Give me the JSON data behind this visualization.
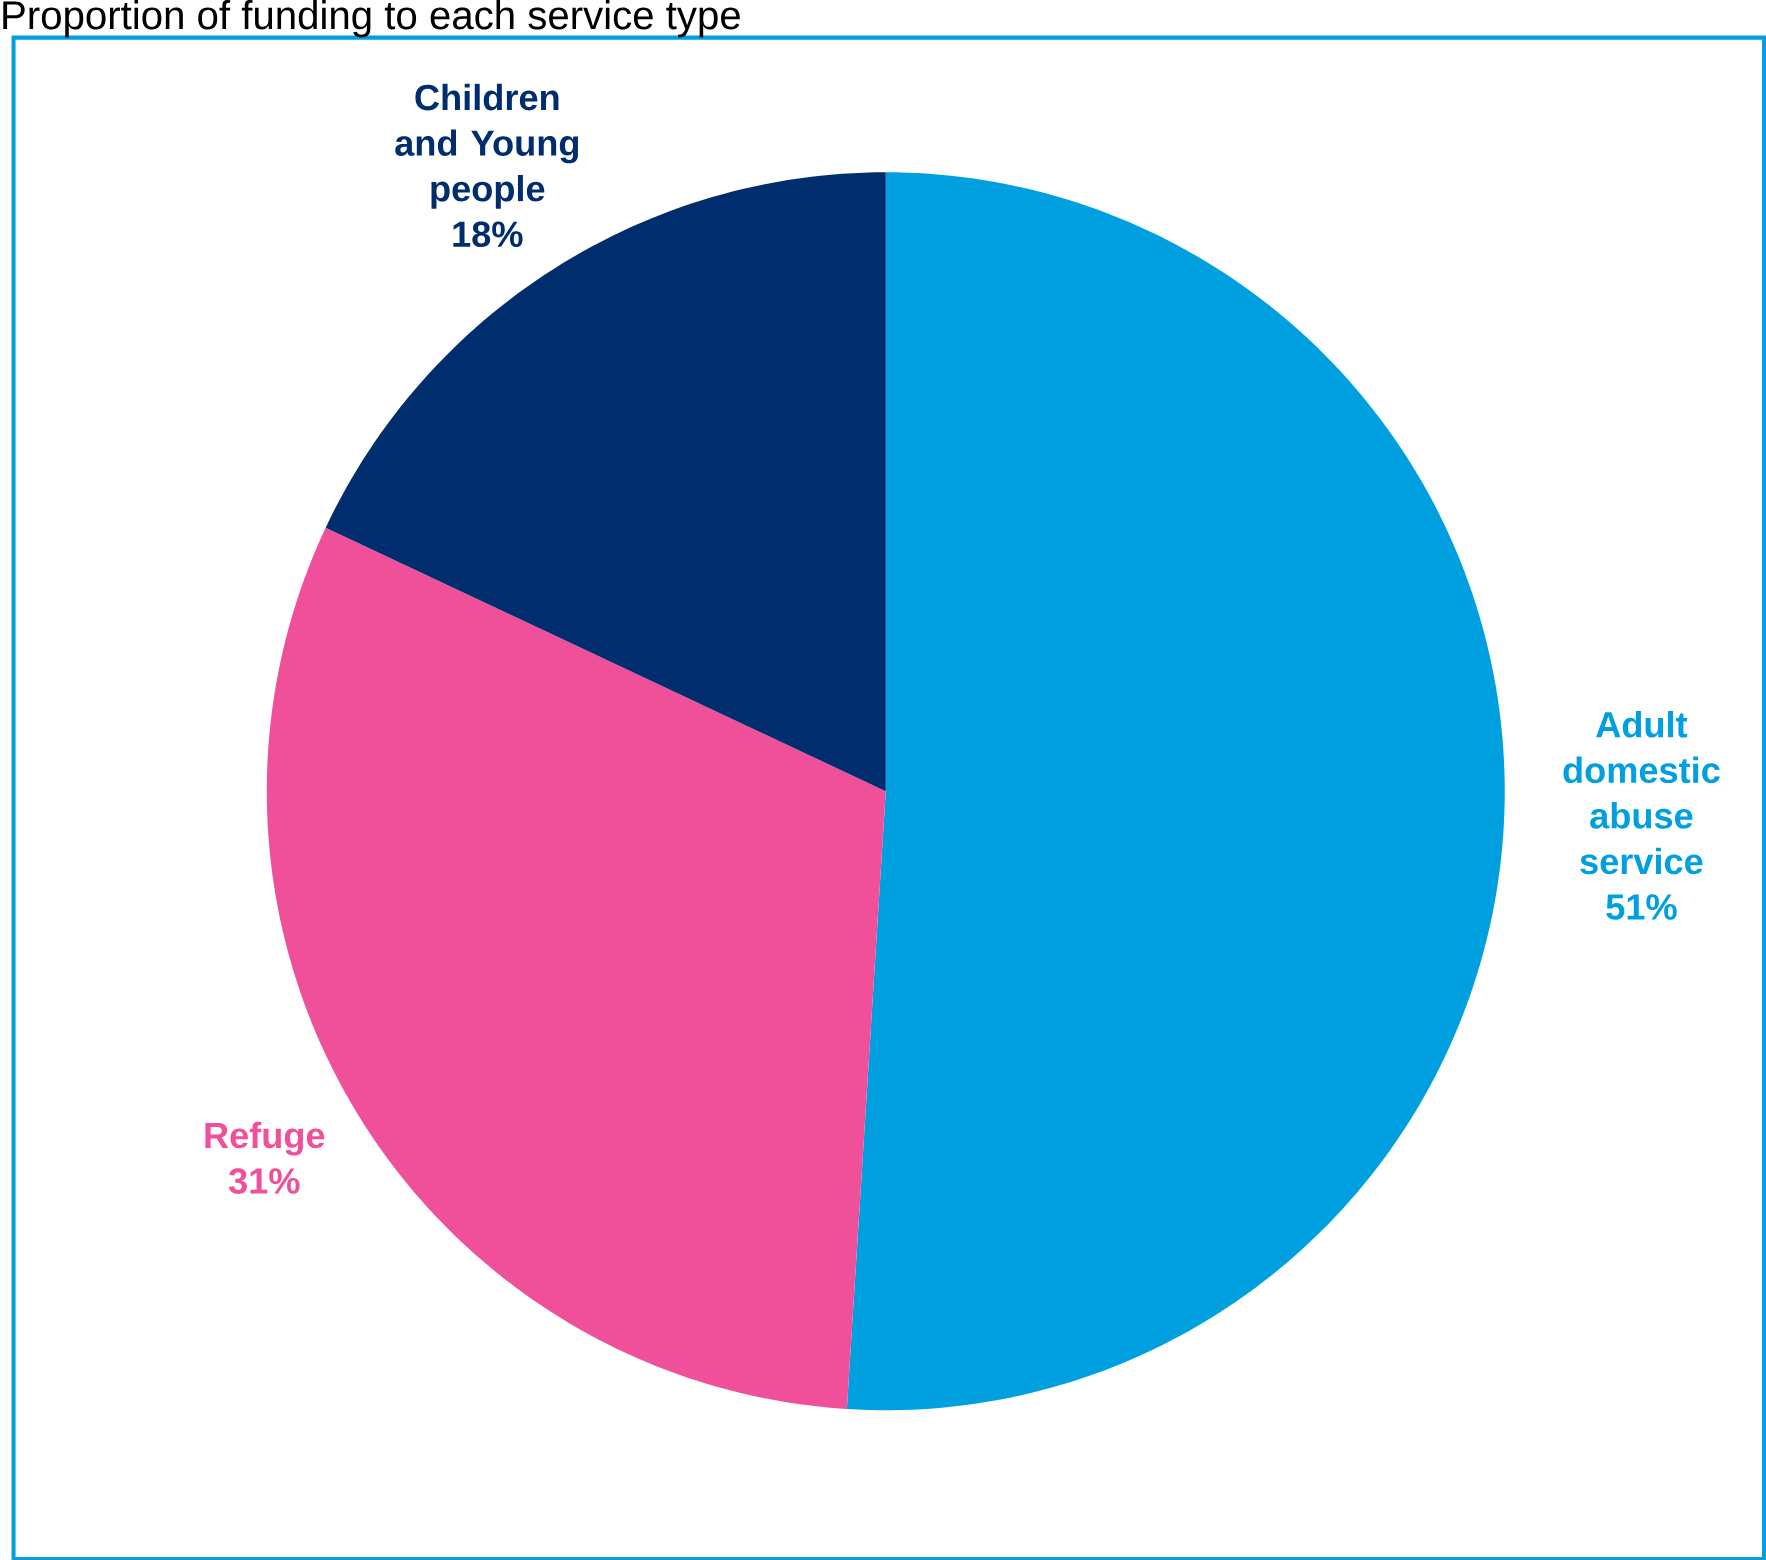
{
  "chart_data": {
    "type": "pie",
    "title": "Proportion of funding to each service type",
    "categories": [
      "Adult domestic abuse service",
      "Refuge",
      "Children and Young people"
    ],
    "values": [
      51,
      31,
      18
    ],
    "value_labels": [
      "51%",
      "31%",
      "18%"
    ],
    "colors": [
      "#009fe0",
      "#f0509a",
      "#002d6e"
    ]
  }
}
